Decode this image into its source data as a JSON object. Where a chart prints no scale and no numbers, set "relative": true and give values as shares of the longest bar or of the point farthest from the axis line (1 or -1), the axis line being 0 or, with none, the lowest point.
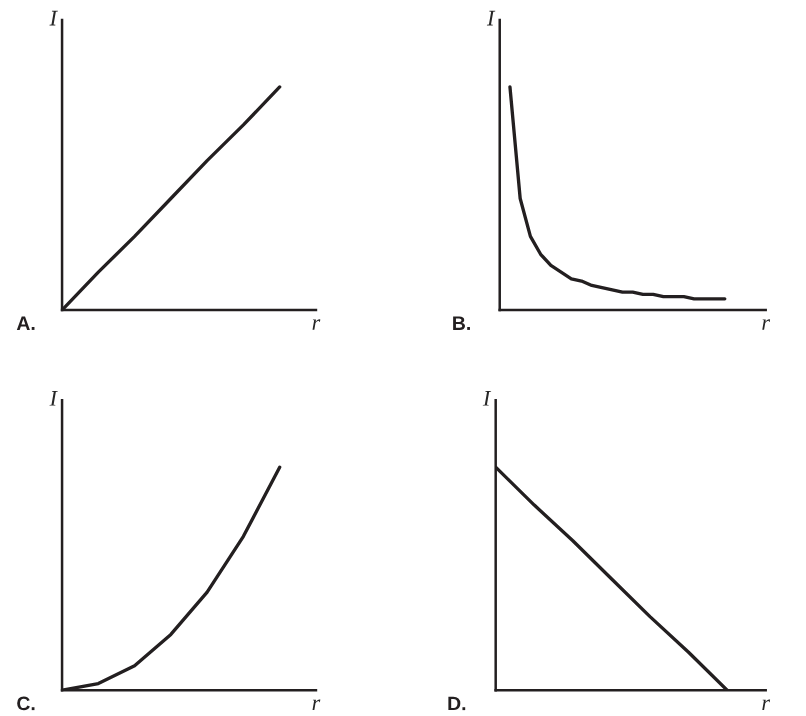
{
  "chart_data": [
    {
      "type": "line",
      "relative": true,
      "xlabel": "r",
      "ylabel": "I",
      "annotations": [
        "A."
      ],
      "color": "#231f20",
      "categories": [
        null,
        null,
        null,
        null,
        null,
        null,
        null,
        null
      ],
      "values": [
        0,
        0.17,
        0.33,
        0.5,
        0.67,
        0.83,
        1,
        null
      ]
    },
    {
      "type": "line",
      "relative": true,
      "xlabel": "r",
      "ylabel": "I",
      "annotations": [
        "B."
      ],
      "color": "#231f20",
      "categories": [
        null,
        null,
        null,
        null,
        null,
        null,
        null,
        null,
        null,
        null,
        null,
        null,
        null,
        null,
        null,
        null,
        null,
        null,
        null,
        null,
        null,
        null,
        null,
        null,
        null,
        null,
        null
      ],
      "values": [
        null,
        1,
        0.5,
        0.33,
        0.25,
        0.2,
        0.17,
        0.14,
        0.13,
        0.11,
        0.1,
        0.09,
        0.08,
        0.08,
        0.07,
        0.07,
        0.06,
        0.06,
        0.06,
        0.05,
        0.05,
        0.05,
        0.05,
        null,
        null,
        null,
        null
      ]
    },
    {
      "type": "line",
      "relative": true,
      "xlabel": "r",
      "ylabel": "I",
      "annotations": [
        "C."
      ],
      "color": "#231f20",
      "categories": [
        null,
        null,
        null,
        null,
        null,
        null,
        null,
        null
      ],
      "values": [
        0,
        0.03,
        0.11,
        0.25,
        0.44,
        0.69,
        1,
        null
      ]
    },
    {
      "type": "line",
      "relative": true,
      "xlabel": "r",
      "ylabel": "I",
      "annotations": [
        "D."
      ],
      "color": "#231f20",
      "categories": [
        null,
        null,
        null,
        null,
        null,
        null,
        null,
        null
      ],
      "values": [
        1,
        0.83,
        0.67,
        0.5,
        0.33,
        0.17,
        0,
        null
      ]
    }
  ]
}
